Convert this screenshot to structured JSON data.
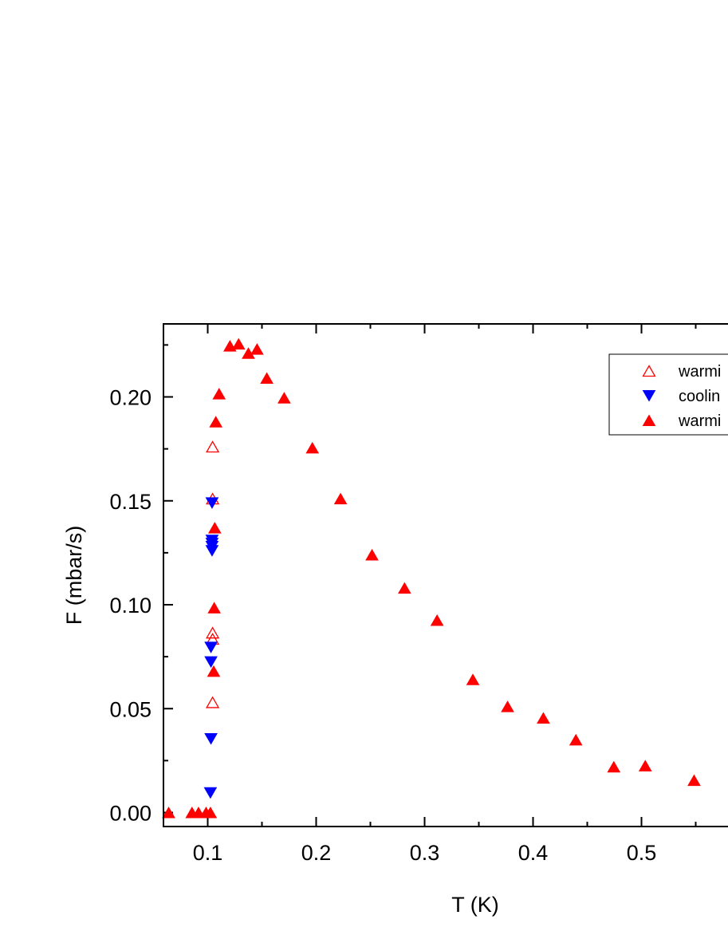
{
  "chart_data": {
    "type": "scatter",
    "title": "",
    "xlabel": "T (K)",
    "ylabel": "F (mbar/s)",
    "xlim": [
      0.06,
      0.6
    ],
    "ylim": [
      -0.006,
      0.237
    ],
    "x_ticks": [
      0.1,
      0.2,
      0.3,
      0.4,
      0.5
    ],
    "x_tick_labels": [
      "0.1",
      "0.2",
      "0.3",
      "0.4",
      "0.5"
    ],
    "y_ticks": [
      0.0,
      0.05,
      0.1,
      0.15,
      0.2
    ],
    "y_tick_labels": [
      "0.00",
      "0.05",
      "0.10",
      "0.15",
      "0.20"
    ],
    "grid": false,
    "legend_position": "top-right",
    "colors": {
      "red": "#ff0000",
      "blue": "#0000ff"
    },
    "series": [
      {
        "name": "warmi",
        "marker": "triangle-up-open",
        "color": "#ff0000",
        "points": [
          [
            0.1045,
            0.176
          ],
          [
            0.1045,
            0.151
          ],
          [
            0.1045,
            0.0865
          ],
          [
            0.1045,
            0.0835
          ],
          [
            0.1045,
            0.053
          ]
        ]
      },
      {
        "name": "coolin",
        "marker": "triangle-down-filled",
        "color": "#0000ff",
        "points": [
          [
            0.104,
            0.149
          ],
          [
            0.104,
            0.131
          ],
          [
            0.104,
            0.1295
          ],
          [
            0.104,
            0.128
          ],
          [
            0.104,
            0.126
          ],
          [
            0.103,
            0.0795
          ],
          [
            0.103,
            0.0725
          ],
          [
            0.103,
            0.0355
          ],
          [
            0.1025,
            0.0095
          ]
        ]
      },
      {
        "name": "warmi",
        "marker": "triangle-up-filled",
        "color": "#ff0000",
        "points": [
          [
            0.064,
            0.0
          ],
          [
            0.0855,
            0.0
          ],
          [
            0.0915,
            0.0
          ],
          [
            0.0985,
            0.0
          ],
          [
            0.1025,
            0.0
          ],
          [
            0.1055,
            0.068
          ],
          [
            0.106,
            0.0985
          ],
          [
            0.1065,
            0.137
          ],
          [
            0.1075,
            0.188
          ],
          [
            0.1105,
            0.2015
          ],
          [
            0.1205,
            0.2245
          ],
          [
            0.1285,
            0.2255
          ],
          [
            0.1375,
            0.221
          ],
          [
            0.1455,
            0.223
          ],
          [
            0.1545,
            0.209
          ],
          [
            0.1705,
            0.1995
          ],
          [
            0.1965,
            0.1755
          ],
          [
            0.2225,
            0.151
          ],
          [
            0.2515,
            0.124
          ],
          [
            0.2815,
            0.108
          ],
          [
            0.3115,
            0.0925
          ],
          [
            0.3445,
            0.064
          ],
          [
            0.3765,
            0.051
          ],
          [
            0.4095,
            0.0455
          ],
          [
            0.4395,
            0.035
          ],
          [
            0.4745,
            0.022
          ],
          [
            0.5035,
            0.0225
          ],
          [
            0.5485,
            0.0155
          ]
        ]
      }
    ]
  }
}
